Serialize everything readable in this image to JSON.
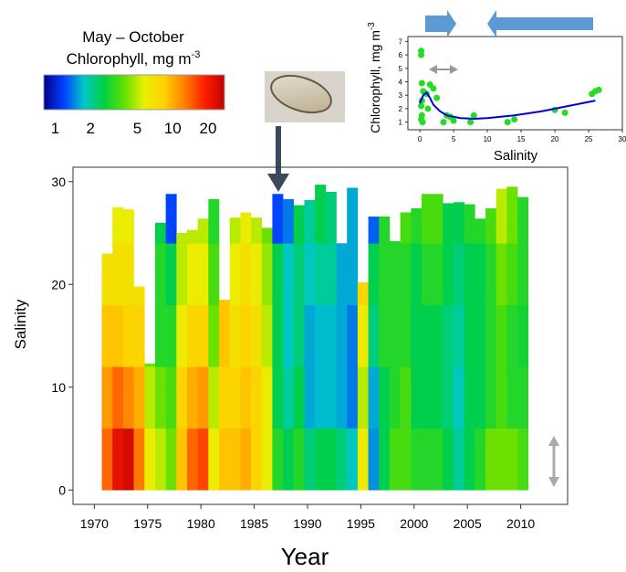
{
  "chart_data": [
    {
      "type": "heatmap",
      "xlabel": "Year",
      "ylabel": "Salinity",
      "xlim": [
        1968,
        2014.4
      ],
      "ylim": [
        -1.4,
        31.4
      ],
      "xticks": [
        1970,
        1975,
        1980,
        1985,
        1990,
        1995,
        2000,
        2005,
        2010
      ],
      "yticks": [
        0,
        10,
        20,
        30
      ],
      "x": [
        1971,
        1972,
        1973,
        1974,
        1975,
        1976,
        1977,
        1978,
        1979,
        1980,
        1981,
        1982,
        1983,
        1984,
        1985,
        1986,
        1987,
        1988,
        1989,
        1990,
        1991,
        1992,
        1993,
        1994,
        1995,
        1996,
        1997,
        1998,
        1999,
        2000,
        2001,
        2002,
        2003,
        2004,
        2005,
        2006,
        2007,
        2008,
        2009,
        2010
      ],
      "max_salinity": [
        23,
        27.5,
        27.3,
        19.8,
        12.3,
        26,
        28.8,
        25,
        25.3,
        26.4,
        28.3,
        18.5,
        26.5,
        27,
        26.5,
        25.5,
        28.8,
        28.3,
        27.7,
        28.2,
        29.7,
        29,
        24,
        29.4,
        20.2,
        26.6,
        26.6,
        24.2,
        27,
        27.4,
        28.8,
        28.8,
        27.9,
        28,
        27.8,
        26.4,
        27.4,
        29.3,
        29.5,
        28.5
      ],
      "bin_edges": [
        0,
        6,
        12,
        18,
        24,
        30
      ],
      "values": [
        [
          14,
          11,
          9,
          7
        ],
        [
          22,
          14,
          9,
          7,
          6
        ],
        [
          24,
          12,
          8,
          7,
          6
        ],
        [
          13,
          10,
          8,
          7
        ],
        [
          6,
          5,
          4
        ],
        [
          5,
          4,
          3,
          3,
          2.5
        ],
        [
          4,
          3.5,
          3,
          2.5,
          1.2
        ],
        [
          9,
          8,
          6,
          5,
          5
        ],
        [
          14,
          10,
          8,
          6,
          5
        ],
        [
          16,
          11,
          8,
          6,
          5
        ],
        [
          6,
          5,
          4,
          3.5,
          3
        ],
        [
          9,
          8,
          9,
          9
        ],
        [
          9,
          8,
          7,
          6,
          5
        ],
        [
          10,
          9,
          8,
          7,
          6
        ],
        [
          8,
          8,
          7,
          6,
          5
        ],
        [
          6,
          6,
          5,
          4.5,
          4
        ],
        [
          3,
          2.5,
          2.5,
          2.5,
          1.2
        ],
        [
          2.5,
          2,
          1.8,
          1.8,
          1.4
        ],
        [
          3,
          2.5,
          2.2,
          2.2,
          2.5
        ],
        [
          2.2,
          1.6,
          1.6,
          1.8,
          2
        ],
        [
          2.5,
          1.7,
          1.7,
          2,
          2.5
        ],
        [
          2.5,
          1.7,
          1.7,
          2,
          2.2
        ],
        [
          2.2,
          1.6,
          1.6,
          1.6
        ],
        [
          1.8,
          1.4,
          1.4,
          1.6,
          1.6
        ],
        [
          6,
          5,
          6,
          8
        ],
        [
          1.5,
          1.6,
          2.2,
          2.5,
          1.3
        ],
        [
          2.5,
          2.5,
          3,
          3,
          3
        ],
        [
          3.5,
          3,
          3,
          3,
          3
        ],
        [
          3.5,
          3.5,
          3,
          3,
          3.5
        ],
        [
          3,
          2.5,
          2.5,
          2.5,
          3
        ],
        [
          3,
          2.5,
          2.5,
          3,
          3.5
        ],
        [
          3,
          2.5,
          2.5,
          3,
          3.5
        ],
        [
          2.5,
          2.2,
          2.2,
          2.5,
          2.5
        ],
        [
          2,
          1.8,
          2,
          2.2,
          2.5
        ],
        [
          2.5,
          2.5,
          2.5,
          2.5,
          3
        ],
        [
          3,
          2.5,
          2.5,
          2.5,
          3
        ],
        [
          4,
          3,
          3,
          3,
          3.5
        ],
        [
          4,
          3.5,
          3.5,
          4,
          5
        ],
        [
          4,
          3,
          3,
          3.5,
          4
        ],
        [
          3.5,
          3,
          2.8,
          3,
          3
        ]
      ],
      "colorbar": {
        "title": "May – October",
        "subtitle": "Chlorophyll, mg m",
        "subtitle_sup": "-3",
        "lim": [
          0.8,
          27.6
        ],
        "ticks": [
          1,
          2,
          5,
          10,
          20
        ],
        "log": true,
        "colors": [
          "#00008b",
          "#0040ff",
          "#00c8c8",
          "#00d040",
          "#60e000",
          "#e8f000",
          "#ffd000",
          "#ff8000",
          "#ff2000",
          "#c00000"
        ]
      }
    },
    {
      "type": "scatter",
      "xlabel": "Salinity",
      "ylabel": "Chlorophyll, mg m",
      "ylabel_sup": "-3",
      "xlim": [
        -1.5,
        30
      ],
      "ylim": [
        0.5,
        7.3
      ],
      "xticks": [
        0,
        5,
        10,
        15,
        20,
        25,
        30
      ],
      "yticks": [
        1,
        2,
        3,
        4,
        5,
        6,
        7
      ],
      "series": [
        {
          "color": "#22dd22",
          "x": [
            0.2,
            0.2,
            0.3,
            0.5,
            0.3,
            0.2,
            0.3,
            0.2,
            0.4,
            1,
            1.5,
            2,
            1.2,
            3.5,
            4,
            5,
            4.5,
            7.5,
            8,
            13,
            14,
            20,
            21.5,
            25.5,
            26,
            26.5,
            2.5
          ],
          "y": [
            6.3,
            6.0,
            3.9,
            3.3,
            2.6,
            2.2,
            1.5,
            1.2,
            1.0,
            3.1,
            3.8,
            3.5,
            2.0,
            1.0,
            1.5,
            1.1,
            1.4,
            1.0,
            1.5,
            1.0,
            1.2,
            1.9,
            1.7,
            3.1,
            3.3,
            3.4,
            2.8
          ]
        },
        {
          "color": "#0000dd",
          "line": true,
          "x": [
            0,
            0.5,
            1,
            1.5,
            2,
            3,
            4,
            6,
            8,
            10,
            14,
            18,
            22,
            26
          ],
          "y": [
            2.4,
            3.0,
            3.2,
            2.8,
            2.3,
            1.8,
            1.5,
            1.3,
            1.25,
            1.3,
            1.5,
            1.8,
            2.2,
            2.6
          ]
        }
      ]
    }
  ]
}
